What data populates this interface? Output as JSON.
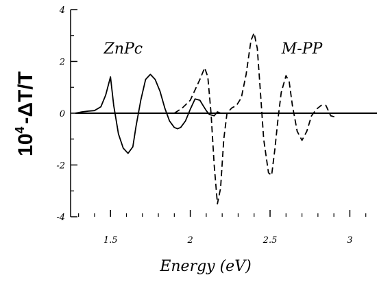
{
  "chart_data": {
    "type": "line",
    "xlabel": "Energy (eV)",
    "ylabel_base": "10",
    "ylabel_exp": "4",
    "ylabel_rest": "-ΔT/T",
    "xlim": [
      1.25,
      3.17
    ],
    "ylim": [
      -4,
      4
    ],
    "x_ticks": [
      1.5,
      2,
      2.5,
      3
    ],
    "x_tick_labels": [
      "1.5",
      "2",
      "2.5",
      "3"
    ],
    "y_ticks": [
      -4,
      -2,
      0,
      2,
      4
    ],
    "y_tick_labels": [
      "-4",
      "-2",
      "0",
      "2",
      "4"
    ],
    "grid": false,
    "colors": {
      "line": "#000000",
      "background": "#ffffff"
    },
    "annotations": [
      {
        "text": "ZnPc",
        "x": 1.58,
        "y": 2.3
      },
      {
        "text": "M-PP",
        "x": 2.7,
        "y": 2.3
      }
    ],
    "zero_line": {
      "from": 1.28,
      "to": 3.17
    },
    "series": [
      {
        "style": "solid",
        "x": [
          1.28,
          1.32,
          1.36,
          1.4,
          1.44,
          1.47,
          1.5,
          1.52,
          1.55,
          1.58,
          1.61,
          1.64,
          1.66,
          1.69,
          1.72,
          1.75,
          1.78,
          1.81,
          1.84,
          1.87,
          1.9,
          1.92,
          1.94,
          1.97,
          2.0,
          2.03,
          2.06,
          2.08,
          2.1,
          2.12,
          2.15,
          2.17,
          2.19
        ],
        "y": [
          0.0,
          0.05,
          0.08,
          0.1,
          0.25,
          0.7,
          1.4,
          0.3,
          -0.8,
          -1.35,
          -1.55,
          -1.3,
          -0.5,
          0.5,
          1.3,
          1.5,
          1.3,
          0.85,
          0.2,
          -0.3,
          -0.55,
          -0.6,
          -0.55,
          -0.3,
          0.15,
          0.55,
          0.5,
          0.3,
          0.1,
          -0.05,
          -0.1,
          0.05,
          0.0
        ]
      },
      {
        "style": "dashed",
        "x": [
          1.9,
          1.95,
          2.0,
          2.03,
          2.06,
          2.09,
          2.11,
          2.13,
          2.15,
          2.17,
          2.19,
          2.21,
          2.23,
          2.26,
          2.29,
          2.32,
          2.35,
          2.38,
          2.4,
          2.42,
          2.44,
          2.46,
          2.49,
          2.51,
          2.53,
          2.55,
          2.57,
          2.6,
          2.62,
          2.64,
          2.67,
          2.7,
          2.73,
          2.76,
          2.79,
          2.82,
          2.85,
          2.88,
          2.91
        ],
        "y": [
          0.0,
          0.2,
          0.5,
          0.9,
          1.3,
          1.75,
          1.4,
          0.0,
          -2.0,
          -3.5,
          -2.9,
          -1.0,
          0.0,
          0.2,
          0.3,
          0.6,
          1.5,
          2.8,
          3.1,
          2.5,
          0.8,
          -1.0,
          -2.3,
          -2.4,
          -1.4,
          -0.2,
          0.8,
          1.45,
          1.2,
          0.3,
          -0.7,
          -1.05,
          -0.7,
          -0.1,
          0.15,
          0.3,
          0.3,
          -0.1,
          -0.15
        ]
      }
    ]
  }
}
